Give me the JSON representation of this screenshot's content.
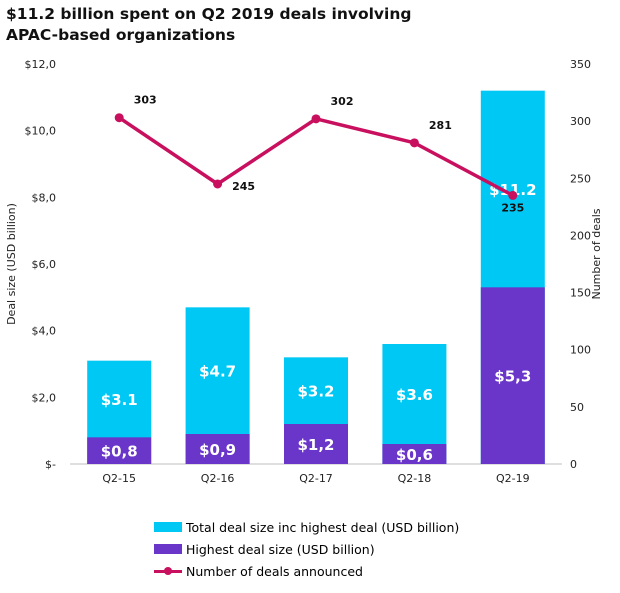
{
  "title_line1": "$11.2 billion spent on Q2 2019 deals involving",
  "title_line2": "APAC-based organizations",
  "chart_data": {
    "type": "bar",
    "categories": [
      "Q2-15",
      "Q2-16",
      "Q2-17",
      "Q2-18",
      "Q2-19"
    ],
    "series": [
      {
        "name": "Total deal size inc highest deal (USD billion)",
        "type": "bar",
        "values": [
          3.1,
          4.7,
          3.2,
          3.6,
          11.2
        ],
        "labels": [
          "$3.1",
          "$4.7",
          "$3.2",
          "$3.6",
          "$11.2"
        ],
        "color": "#00c8f5"
      },
      {
        "name": "Highest deal size (USD billion)",
        "type": "bar",
        "values": [
          0.8,
          0.9,
          1.2,
          0.6,
          5.3
        ],
        "labels": [
          "$0,8",
          "$0,9",
          "$1,2",
          "$0,6",
          "$5,3"
        ],
        "color": "#6a35c9"
      },
      {
        "name": "Number of deals announced",
        "type": "line",
        "axis": "right",
        "values": [
          303,
          245,
          302,
          281,
          235
        ],
        "labels": [
          "303",
          "245",
          "302",
          "281",
          "235"
        ],
        "color": "#c8105f"
      }
    ],
    "ylabel": "Deal size (USD billion)",
    "y2label": "Number of deals",
    "ylim": [
      0,
      12
    ],
    "y2lim": [
      0,
      350
    ],
    "yticks": [
      "$-",
      "$2,0",
      "$4,0",
      "$6,0",
      "$8,0",
      "$10,0",
      "$12,0"
    ],
    "y2ticks": [
      "0",
      "50",
      "100",
      "150",
      "200",
      "250",
      "300",
      "350"
    ],
    "grid": false,
    "legend": "bottom"
  }
}
